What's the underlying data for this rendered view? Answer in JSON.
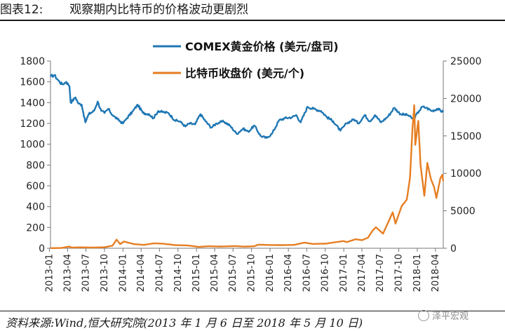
{
  "page": {
    "title": "图表12:       观察期内比特币的价格波动更剧烈",
    "source": "资料来源:Wind,恒大研究院(2013 年 1 月 6 日至 2018 年 5 月 10 日)",
    "watermark": "泽平宏观"
  },
  "chart_data": {
    "type": "line",
    "x_ticks": [
      "2013-01",
      "2013-04",
      "2013-07",
      "2013-10",
      "2014-01",
      "2014-04",
      "2014-07",
      "2014-10",
      "2015-01",
      "2015-04",
      "2015-07",
      "2015-10",
      "2016-01",
      "2016-04",
      "2016-07",
      "2016-10",
      "2017-01",
      "2017-04",
      "2017-07",
      "2017-10",
      "2018-01",
      "2018-04"
    ],
    "x_range": [
      "2013-01-06",
      "2018-05-10"
    ],
    "y_left": {
      "range": [
        0,
        1800
      ],
      "ticks": [
        0,
        200,
        400,
        600,
        800,
        1000,
        1200,
        1400,
        1600,
        1800
      ]
    },
    "y_right": {
      "range": [
        0,
        25000
      ],
      "ticks": [
        0,
        5000,
        10000,
        15000,
        20000,
        25000
      ]
    },
    "grid": false,
    "legend_position": "top-center",
    "series": [
      {
        "name": "COMEX黄金价格 (美元/盘司)",
        "axis": "left",
        "color": "#1f77b4",
        "points": [
          [
            "2013-01-06",
            1650
          ],
          [
            "2013-01-25",
            1665
          ],
          [
            "2013-02-15",
            1610
          ],
          [
            "2013-03-05",
            1575
          ],
          [
            "2013-03-25",
            1600
          ],
          [
            "2013-04-10",
            1560
          ],
          [
            "2013-04-16",
            1400
          ],
          [
            "2013-05-10",
            1450
          ],
          [
            "2013-05-25",
            1390
          ],
          [
            "2013-06-10",
            1380
          ],
          [
            "2013-06-28",
            1210
          ],
          [
            "2013-07-15",
            1290
          ],
          [
            "2013-08-10",
            1320
          ],
          [
            "2013-08-28",
            1410
          ],
          [
            "2013-09-15",
            1320
          ],
          [
            "2013-10-01",
            1300
          ],
          [
            "2013-10-20",
            1340
          ],
          [
            "2013-11-10",
            1280
          ],
          [
            "2013-12-05",
            1240
          ],
          [
            "2013-12-31",
            1200
          ],
          [
            "2014-01-20",
            1250
          ],
          [
            "2014-02-20",
            1320
          ],
          [
            "2014-03-15",
            1380
          ],
          [
            "2014-04-10",
            1300
          ],
          [
            "2014-05-10",
            1290
          ],
          [
            "2014-06-01",
            1250
          ],
          [
            "2014-06-25",
            1320
          ],
          [
            "2014-07-15",
            1310
          ],
          [
            "2014-08-15",
            1300
          ],
          [
            "2014-09-15",
            1230
          ],
          [
            "2014-10-10",
            1220
          ],
          [
            "2014-11-07",
            1170
          ],
          [
            "2014-11-25",
            1200
          ],
          [
            "2014-12-25",
            1190
          ],
          [
            "2015-01-20",
            1290
          ],
          [
            "2015-02-15",
            1220
          ],
          [
            "2015-03-15",
            1160
          ],
          [
            "2015-04-10",
            1200
          ],
          [
            "2015-05-15",
            1220
          ],
          [
            "2015-06-15",
            1180
          ],
          [
            "2015-07-20",
            1100
          ],
          [
            "2015-08-20",
            1150
          ],
          [
            "2015-09-15",
            1120
          ],
          [
            "2015-10-15",
            1180
          ],
          [
            "2015-11-15",
            1080
          ],
          [
            "2015-12-15",
            1060
          ],
          [
            "2016-01-10",
            1100
          ],
          [
            "2016-02-15",
            1230
          ],
          [
            "2016-03-15",
            1250
          ],
          [
            "2016-04-20",
            1260
          ],
          [
            "2016-05-10",
            1280
          ],
          [
            "2016-06-01",
            1210
          ],
          [
            "2016-07-05",
            1360
          ],
          [
            "2016-08-05",
            1340
          ],
          [
            "2016-09-10",
            1320
          ],
          [
            "2016-10-10",
            1260
          ],
          [
            "2016-11-10",
            1220
          ],
          [
            "2016-12-15",
            1130
          ],
          [
            "2017-01-15",
            1200
          ],
          [
            "2017-02-20",
            1240
          ],
          [
            "2017-03-15",
            1200
          ],
          [
            "2017-04-15",
            1280
          ],
          [
            "2017-05-10",
            1220
          ],
          [
            "2017-06-05",
            1280
          ],
          [
            "2017-07-05",
            1210
          ],
          [
            "2017-08-10",
            1270
          ],
          [
            "2017-09-08",
            1350
          ],
          [
            "2017-10-10",
            1290
          ],
          [
            "2017-11-15",
            1280
          ],
          [
            "2017-12-12",
            1240
          ],
          [
            "2018-01-10",
            1320
          ],
          [
            "2018-01-25",
            1360
          ],
          [
            "2018-02-15",
            1350
          ],
          [
            "2018-03-15",
            1320
          ],
          [
            "2018-04-10",
            1340
          ],
          [
            "2018-05-10",
            1310
          ]
        ]
      },
      {
        "name": "比特币收盘价 (美元/个)",
        "axis": "right",
        "color": "#e67e22",
        "points": [
          [
            "2013-01-06",
            13
          ],
          [
            "2013-03-01",
            35
          ],
          [
            "2013-04-09",
            230
          ],
          [
            "2013-04-20",
            100
          ],
          [
            "2013-06-01",
            120
          ],
          [
            "2013-08-01",
            100
          ],
          [
            "2013-10-01",
            130
          ],
          [
            "2013-11-10",
            350
          ],
          [
            "2013-11-30",
            1150
          ],
          [
            "2013-12-18",
            550
          ],
          [
            "2014-01-05",
            900
          ],
          [
            "2014-02-25",
            550
          ],
          [
            "2014-04-15",
            450
          ],
          [
            "2014-06-01",
            650
          ],
          [
            "2014-07-15",
            620
          ],
          [
            "2014-09-15",
            420
          ],
          [
            "2014-11-15",
            380
          ],
          [
            "2015-01-14",
            180
          ],
          [
            "2015-03-01",
            270
          ],
          [
            "2015-05-01",
            230
          ],
          [
            "2015-07-15",
            290
          ],
          [
            "2015-08-25",
            220
          ],
          [
            "2015-10-15",
            270
          ],
          [
            "2015-11-04",
            480
          ],
          [
            "2016-01-01",
            430
          ],
          [
            "2016-03-01",
            420
          ],
          [
            "2016-05-01",
            450
          ],
          [
            "2016-06-18",
            750
          ],
          [
            "2016-08-01",
            580
          ],
          [
            "2016-10-01",
            610
          ],
          [
            "2016-12-31",
            960
          ],
          [
            "2017-01-15",
            820
          ],
          [
            "2017-03-01",
            1200
          ],
          [
            "2017-04-01",
            1080
          ],
          [
            "2017-05-01",
            1400
          ],
          [
            "2017-05-25",
            2400
          ],
          [
            "2017-06-10",
            2800
          ],
          [
            "2017-07-15",
            1950
          ],
          [
            "2017-08-05",
            3200
          ],
          [
            "2017-09-01",
            4800
          ],
          [
            "2017-09-15",
            3300
          ],
          [
            "2017-10-15",
            5600
          ],
          [
            "2017-11-10",
            6500
          ],
          [
            "2017-11-26",
            9500
          ],
          [
            "2017-12-08",
            16000
          ],
          [
            "2017-12-17",
            19100
          ],
          [
            "2017-12-22",
            13800
          ],
          [
            "2018-01-06",
            17000
          ],
          [
            "2018-01-17",
            11200
          ],
          [
            "2018-02-05",
            7000
          ],
          [
            "2018-02-20",
            11400
          ],
          [
            "2018-03-10",
            9200
          ],
          [
            "2018-03-25",
            8200
          ],
          [
            "2018-04-06",
            6700
          ],
          [
            "2018-04-25",
            9300
          ],
          [
            "2018-05-05",
            9800
          ],
          [
            "2018-05-10",
            9000
          ]
        ]
      }
    ]
  }
}
